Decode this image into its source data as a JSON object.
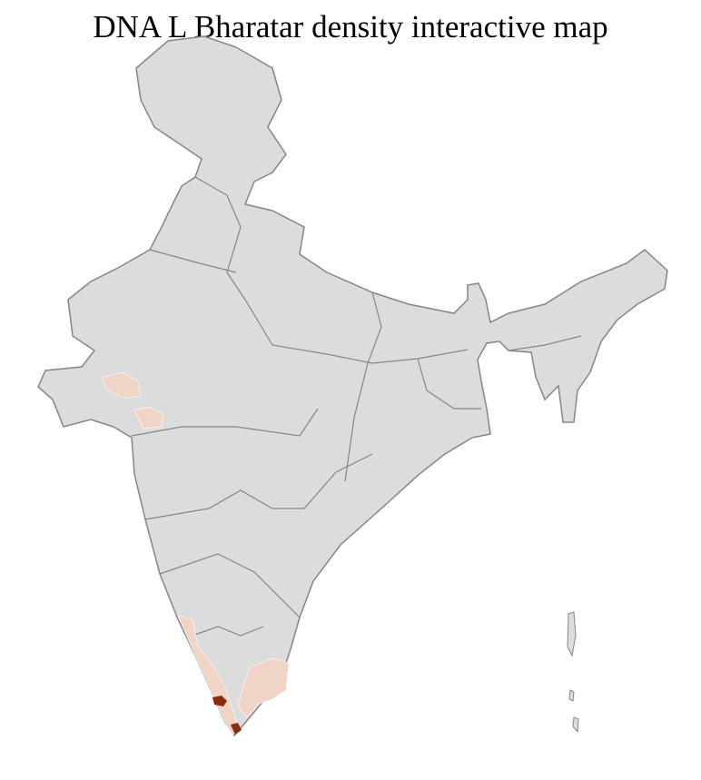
{
  "title": "DNA L Bharatar density interactive map",
  "colors": {
    "land": "#dcdcdc",
    "state_border": "#858585",
    "district_border": "#ffffff",
    "low_density": "#f0d4c6",
    "high_density": "#8b2c0a"
  }
}
